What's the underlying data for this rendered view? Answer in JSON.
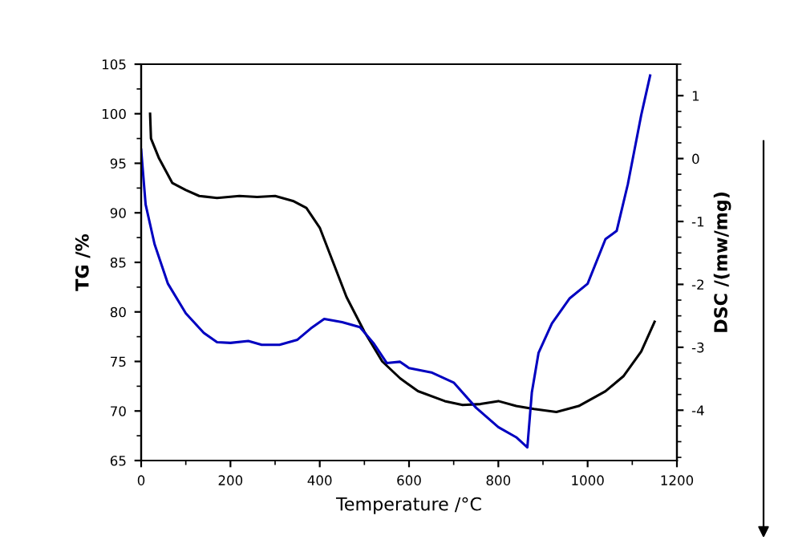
{
  "chart_data": {
    "type": "line",
    "xlabel": "Temperature /°C",
    "ylabel": "TG /%",
    "y2label": "DSC /(mw/mg)",
    "xlim": [
      0,
      1200
    ],
    "xticks": [
      0,
      200,
      400,
      600,
      800,
      1000,
      1200
    ],
    "ylim": [
      65,
      105
    ],
    "yticks": [
      65,
      70,
      75,
      80,
      85,
      90,
      95,
      100,
      105
    ],
    "y2lim": [
      -4.8,
      1.5
    ],
    "y2ticks": [
      -4,
      -3,
      -2,
      -1,
      0,
      1
    ],
    "grid": false,
    "legend": false,
    "marker": "none",
    "line_style": "solid",
    "series": [
      {
        "color": "#000000",
        "x": [
          20,
          22,
          40,
          70,
          100,
          130,
          170,
          220,
          260,
          300,
          340,
          370,
          400,
          430,
          460,
          500,
          540,
          580,
          620,
          680,
          720,
          760,
          800,
          840,
          880,
          930,
          980,
          1040,
          1080,
          1120,
          1150
        ],
        "values": [
          100,
          97.5,
          95.5,
          93,
          92.3,
          91.7,
          91.5,
          91.7,
          91.6,
          91.7,
          91.2,
          90.5,
          88.5,
          85,
          81.5,
          78,
          75,
          73.3,
          72,
          71,
          70.6,
          70.7,
          71,
          70.5,
          70.2,
          69.9,
          70.5,
          72,
          73.5,
          76,
          79
        ]
      },
      {
        "color": "#0000c0",
        "axis": "y2",
        "x": [
          0,
          10,
          30,
          60,
          100,
          140,
          170,
          200,
          240,
          270,
          310,
          350,
          380,
          410,
          450,
          490,
          520,
          550,
          580,
          600,
          650,
          700,
          750,
          800,
          840,
          865,
          875,
          890,
          920,
          960,
          1000,
          1040,
          1065,
          1090,
          1120,
          1140
        ],
        "values": [
          0.14,
          -0.73,
          -1.36,
          -1.99,
          -2.46,
          -2.77,
          -2.92,
          -2.93,
          -2.9,
          -2.96,
          -2.96,
          -2.88,
          -2.7,
          -2.55,
          -2.6,
          -2.68,
          -2.93,
          -3.25,
          -3.23,
          -3.33,
          -3.4,
          -3.56,
          -3.96,
          -4.27,
          -4.43,
          -4.59,
          -3.72,
          -3.09,
          -2.62,
          -2.22,
          -1.99,
          -1.28,
          -1.15,
          -0.41,
          0.69,
          1.32
        ]
      }
    ]
  }
}
